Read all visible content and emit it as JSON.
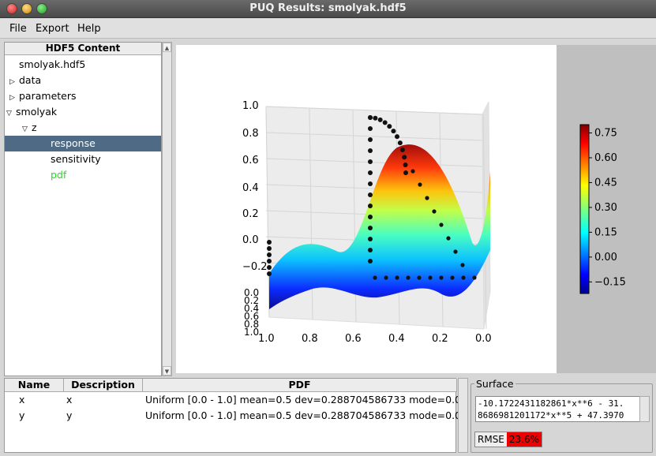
{
  "window": {
    "title": "PUQ Results: smolyak.hdf5"
  },
  "menu": {
    "file": "File",
    "export": "Export",
    "help": "Help"
  },
  "tree": {
    "header": "HDF5 Content",
    "root": "smolyak.hdf5",
    "data": "data",
    "parameters": "parameters",
    "smolyak": "smolyak",
    "z": "z",
    "response": "response",
    "sensitivity": "sensitivity",
    "pdf": "pdf"
  },
  "table": {
    "headers": [
      "Name",
      "Description",
      "PDF"
    ],
    "rows": [
      {
        "name": "x",
        "description": "x",
        "pdf": "Uniform [0.0 - 1.0] mean=0.5 dev=0.288704586733 mode=0.0"
      },
      {
        "name": "y",
        "description": "y",
        "pdf": "Uniform [0.0 - 1.0] mean=0.5 dev=0.288704586733 mode=0.0"
      }
    ]
  },
  "surface": {
    "legend": "Surface",
    "formula_line1": "-10.1722431182861*x**6 - 31.",
    "formula_line2": "8686981201172*x**5 + 47.3970",
    "rmse_label": "RMSE",
    "rmse_value": "23.6%",
    "rmse_color": "#e00000"
  },
  "chart_data": {
    "type": "surface",
    "z_ticks": [
      "1.0",
      "0.8",
      "0.6",
      "0.4",
      "0.2",
      "0.0",
      "−0.2"
    ],
    "x_ticks": [
      "1.0",
      "0.8",
      "0.6",
      "0.4",
      "0.2",
      "0.0"
    ],
    "y_ticks": [
      "0.0",
      "0.2",
      "0.4",
      "0.6",
      "0.8",
      "1.0"
    ],
    "colorbar_ticks": [
      "0.75",
      "0.60",
      "0.45",
      "0.30",
      "0.15",
      "0.00",
      "−0.15"
    ],
    "colorbar_range": [
      -0.22,
      0.8
    ],
    "colormap": "jet"
  }
}
